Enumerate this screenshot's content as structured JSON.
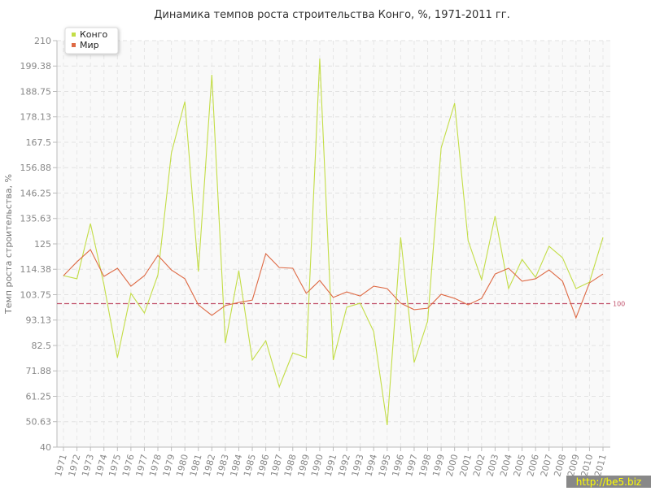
{
  "chart_data": {
    "type": "line",
    "title": "Динамика темпов роста строительства Конго, %, 1971-2011 гг.",
    "y_label": "Темп роста строительства, %",
    "categories": [
      "1971",
      "1972",
      "1973",
      "1974",
      "1975",
      "1976",
      "1977",
      "1978",
      "1979",
      "1980",
      "1981",
      "1982",
      "1983",
      "1984",
      "1985",
      "1986",
      "1987",
      "1988",
      "1989",
      "1990",
      "1991",
      "1992",
      "1993",
      "1994",
      "1995",
      "1996",
      "1997",
      "1998",
      "1999",
      "2000",
      "2001",
      "2002",
      "2003",
      "2004",
      "2005",
      "2006",
      "2007",
      "2008",
      "2009",
      "2010",
      "2011"
    ],
    "series": [
      {
        "name": "Конго",
        "color": "#c3dd46",
        "values": [
          111.7,
          110.4,
          133.5,
          108,
          77.4,
          104.3,
          96.1,
          112,
          163,
          184.5,
          113.4,
          195.7,
          83.5,
          113.8,
          76.4,
          84.5,
          65.2,
          79.4,
          77.4,
          202.5,
          76.4,
          98.5,
          100.2,
          88.3,
          49.2,
          127.7,
          75.4,
          92.7,
          165.1,
          183.8,
          126.4,
          110,
          136.6,
          106.3,
          118.5,
          111,
          124,
          119.2,
          106.3,
          109,
          127.7
        ]
      },
      {
        "name": "Мир",
        "color": "#de6a45",
        "values": [
          111.7,
          117.5,
          122.6,
          111.4,
          114.8,
          107.3,
          111.7,
          120.2,
          114.1,
          110.4,
          99.5,
          95.1,
          99.2,
          100.5,
          101.5,
          120.9,
          115.1,
          114.8,
          104.3,
          109.7,
          102.6,
          104.9,
          103.2,
          107.3,
          106.3,
          100.2,
          97.5,
          98.1,
          103.9,
          102.2,
          99.5,
          102.2,
          112.4,
          114.8,
          109.4,
          110.4,
          114.1,
          109.4,
          94.1,
          108.7,
          112.4
        ]
      }
    ],
    "ylim": [
      40,
      210
    ],
    "yticks": [
      40,
      50.63,
      61.25,
      71.88,
      82.5,
      93.13,
      103.75,
      114.38,
      125,
      135.63,
      146.25,
      156.88,
      167.5,
      178.13,
      188.75,
      199.38,
      210
    ],
    "grid": true,
    "legend": "top-left",
    "reference_line": 100,
    "reference_color": "#c0506a",
    "watermark": "http://be5.biz"
  }
}
